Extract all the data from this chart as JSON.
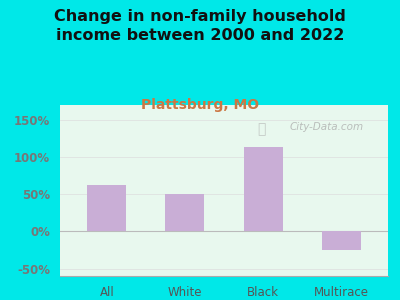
{
  "title": "Change in non-family household\nincome between 2000 and 2022",
  "subtitle": "Plattsburg, MO",
  "categories": [
    "All",
    "White",
    "Black",
    "Multirace"
  ],
  "values": [
    62,
    50,
    113,
    -25
  ],
  "bar_color": "#c9aed6",
  "title_fontsize": 11.5,
  "subtitle_fontsize": 10,
  "subtitle_color": "#cc7744",
  "title_color": "#111111",
  "tick_label_color": "#777777",
  "xlabel_color": "#555555",
  "ylim": [
    -60,
    170
  ],
  "yticks": [
    -50,
    0,
    50,
    100,
    150
  ],
  "ytick_labels": [
    "-50%",
    "0%",
    "50%",
    "100%",
    "150%"
  ],
  "bg_outer": "#00e8e8",
  "bg_plot": "#e8f8ee",
  "watermark": "City-Data.com",
  "zero_line_color": "#bbbbbb",
  "grid_color": "#dddddd"
}
